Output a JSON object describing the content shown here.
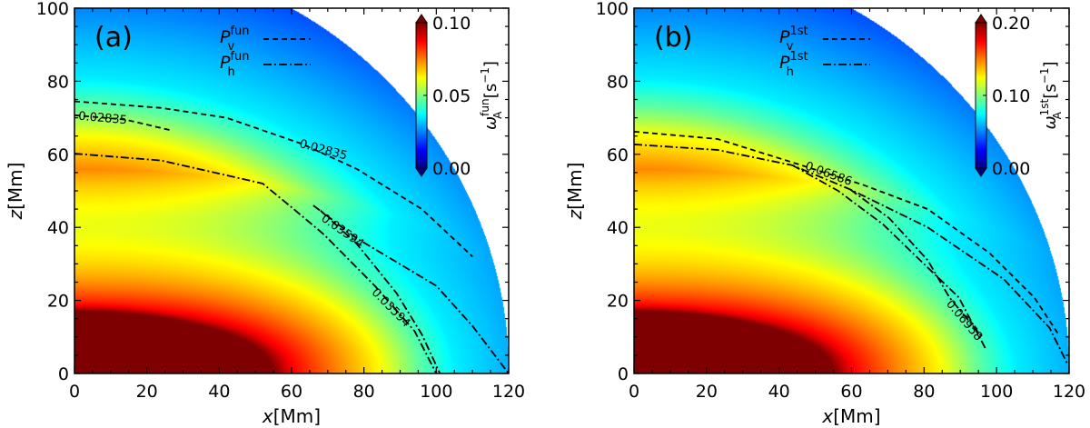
{
  "chart_data": [
    {
      "type": "heatmap",
      "panel_label": "(a)",
      "xlabel_var": "x",
      "xlabel_unit": "[Mm]",
      "ylabel_var": "z",
      "ylabel_unit": "[Mm]",
      "xlim": [
        0,
        120
      ],
      "ylim": [
        0,
        100
      ],
      "xticks": [
        "0",
        "20",
        "40",
        "60",
        "80",
        "100",
        "120"
      ],
      "yticks": [
        "0",
        "20",
        "40",
        "60",
        "80",
        "100"
      ],
      "colormap": "jet",
      "colorbar": {
        "label_sym": "ω",
        "label_sub": "A",
        "label_sup": "fun",
        "label_unit": "[s",
        "label_unit_sup": "−1",
        "label_close": "]",
        "range": [
          0,
          0.1
        ],
        "ticks": [
          "0.00",
          "0.05",
          "0.10"
        ],
        "extend": "both"
      },
      "legend": [
        {
          "sym": "P",
          "sub": "v",
          "sup": "fun",
          "style": "dashed"
        },
        {
          "sym": "P",
          "sub": "h",
          "sup": "fun",
          "style": "dashdot"
        }
      ],
      "contours": [
        {
          "style": "dashed",
          "points": [
            [
              0,
              74.5
            ],
            [
              24,
              72.7
            ],
            [
              42,
              70
            ],
            [
              63,
              62.8
            ],
            [
              78,
              56
            ],
            [
              96,
              45
            ],
            [
              110,
              32
            ]
          ]
        },
        {
          "style": "dashed",
          "points": [
            [
              0,
              70.7
            ],
            [
              14,
              69.5
            ],
            [
              27,
              66.5
            ]
          ]
        },
        {
          "style": "dashdot",
          "points": [
            [
              0,
              60.2
            ],
            [
              24,
              58.3
            ],
            [
              52,
              52
            ],
            [
              60,
              45.5
            ],
            [
              69,
              38
            ],
            [
              83,
              24
            ],
            [
              94,
              11.6
            ],
            [
              100,
              0
            ]
          ]
        },
        {
          "style": "dashdot",
          "points": [
            [
              68,
              44.6
            ],
            [
              78,
              35.5
            ],
            [
              89,
              22
            ],
            [
              96,
              10.7
            ],
            [
              101,
              0
            ]
          ]
        },
        {
          "style": "dashdot",
          "points": [
            [
              66,
              46
            ],
            [
              78,
              37
            ],
            [
              100,
              24
            ],
            [
              110,
              13
            ],
            [
              120,
              0
            ]
          ]
        }
      ],
      "contour_labels": [
        {
          "text": "0.02835",
          "x": 1,
          "y": 69.5,
          "angle": 5
        },
        {
          "text": "0.02835",
          "x": 62,
          "y": 62,
          "angle": 15
        },
        {
          "text": "0.03594",
          "x": 68,
          "y": 42,
          "angle": 35
        },
        {
          "text": "0.03594",
          "x": 82,
          "y": 22,
          "angle": 45
        }
      ]
    },
    {
      "type": "heatmap",
      "panel_label": "(b)",
      "xlabel_var": "x",
      "xlabel_unit": "[Mm]",
      "ylabel_var": "z",
      "ylabel_unit": "[Mm]",
      "xlim": [
        0,
        120
      ],
      "ylim": [
        0,
        100
      ],
      "xticks": [
        "0",
        "20",
        "40",
        "60",
        "80",
        "100",
        "120"
      ],
      "yticks": [
        "0",
        "20",
        "40",
        "60",
        "80",
        "100"
      ],
      "colormap": "jet",
      "colorbar": {
        "label_sym": "ω",
        "label_sub": "A",
        "label_sup": "1st",
        "label_unit": "[s",
        "label_unit_sup": "−1",
        "label_close": "]",
        "range": [
          0,
          0.2
        ],
        "ticks": [
          "0.00",
          "0.10",
          "0.20"
        ],
        "extend": "both"
      },
      "legend": [
        {
          "sym": "P",
          "sub": "v",
          "sup": "1st",
          "style": "dashed"
        },
        {
          "sym": "P",
          "sub": "h",
          "sup": "1st",
          "style": "dashdot"
        }
      ],
      "contours": [
        {
          "style": "dashed",
          "points": [
            [
              0,
              66.2
            ],
            [
              23,
              64.2
            ],
            [
              44.6,
              57.5
            ],
            [
              63,
              51.7
            ],
            [
              81,
              45
            ],
            [
              98,
              33
            ],
            [
              110.4,
              20.8
            ],
            [
              117,
              10.8
            ]
          ]
        },
        {
          "style": "dashdot",
          "points": [
            [
              0,
              62.7
            ],
            [
              23,
              61.2
            ],
            [
              43.7,
              57
            ],
            [
              59.6,
              50.4
            ],
            [
              81,
              40
            ],
            [
              102,
              25.8
            ],
            [
              114.6,
              12.5
            ],
            [
              119.6,
              2.5
            ]
          ]
        },
        {
          "style": "dashdot",
          "points": [
            [
              43.7,
              57
            ],
            [
              56.3,
              50
            ],
            [
              68.7,
              40.8
            ],
            [
              81,
              29
            ],
            [
              89.6,
              20.8
            ],
            [
              97,
              6.7
            ]
          ]
        },
        {
          "style": "dashdot",
          "points": [
            [
              59.6,
              50.4
            ],
            [
              70.4,
              42.5
            ],
            [
              81,
              31
            ],
            [
              87,
              20.8
            ],
            [
              96,
              10
            ]
          ]
        }
      ],
      "contour_labels": [
        {
          "text": "0.06586",
          "x": 47,
          "y": 56,
          "angle": 20
        },
        {
          "text": "0.06958",
          "x": 86,
          "y": 19,
          "angle": 50
        }
      ]
    }
  ]
}
